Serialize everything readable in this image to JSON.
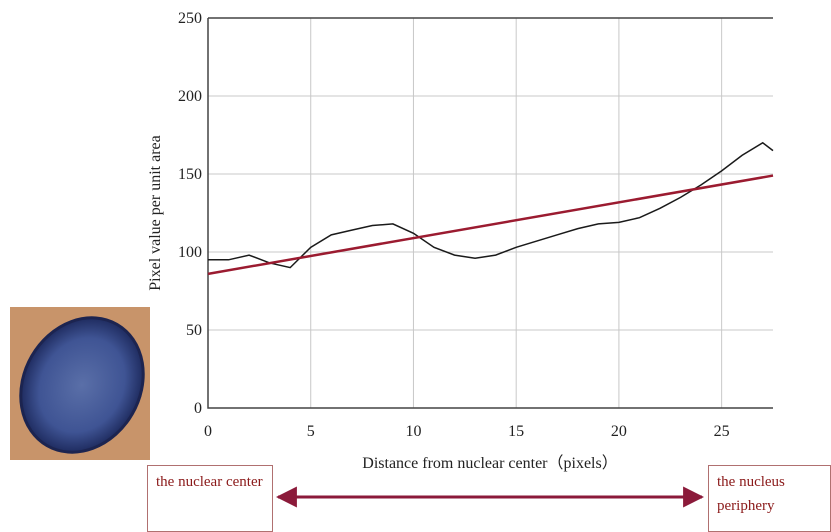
{
  "chart_data": {
    "type": "line",
    "x_label": "Distance from nuclear center（pixels）",
    "y_label": "Pixel value per unit area",
    "x": [
      0,
      1,
      2,
      3,
      4,
      5,
      6,
      7,
      8,
      9,
      10,
      11,
      12,
      13,
      14,
      15,
      16,
      17,
      18,
      19,
      20,
      21,
      22,
      23,
      24,
      25,
      26,
      27,
      27.5
    ],
    "series": [
      {
        "color": "#1a1a1a",
        "values": [
          95,
          95,
          98,
          93,
          90,
          103,
          111,
          114,
          117,
          118,
          112,
          103,
          98,
          96,
          98,
          103,
          107,
          111,
          115,
          118,
          119,
          122,
          128,
          135,
          143,
          152,
          162,
          170,
          165
        ]
      }
    ],
    "trend_line": {
      "color": "#9b1b30",
      "x": [
        0,
        27.5
      ],
      "values": [
        86,
        149
      ]
    },
    "xlim": [
      0,
      27.5
    ],
    "xticks": [
      0,
      5,
      10,
      15,
      20,
      25
    ],
    "ylim": [
      0,
      250
    ],
    "yticks": [
      0,
      50,
      100,
      150,
      200,
      250
    ],
    "grid": true,
    "annotations": [
      "the nuclear center",
      "the nucleus periphery"
    ]
  }
}
